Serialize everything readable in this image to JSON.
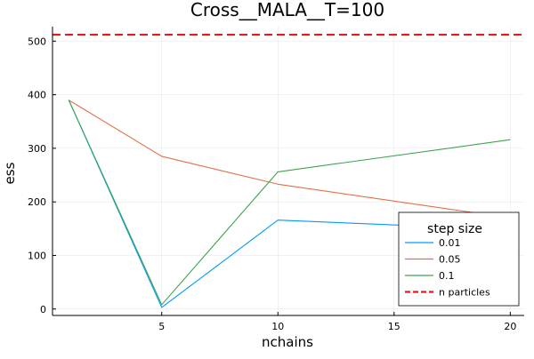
{
  "chart_data": {
    "type": "line",
    "title": "Cross__MALA__T=100",
    "xlabel": "nchains",
    "ylabel": "ess",
    "xlim": [
      0.3,
      20.6
    ],
    "ylim": [
      -12,
      527
    ],
    "xticks": [
      5,
      10,
      15,
      20
    ],
    "yticks": [
      0,
      100,
      200,
      300,
      400,
      500
    ],
    "grid": true,
    "legend": {
      "title": "step size",
      "position": "lower-right"
    },
    "x": [
      1,
      5,
      10,
      20
    ],
    "series": [
      {
        "name": "0.01",
        "color": "#009af9",
        "values": [
          390,
          3,
          166,
          148
        ]
      },
      {
        "name": "0.05",
        "color": "#e26f46",
        "values": [
          390,
          285,
          233,
          170
        ]
      },
      {
        "name": "0.1",
        "color": "#3ea44e",
        "values": [
          390,
          8,
          256,
          316
        ]
      }
    ],
    "hline": {
      "name": "n particles",
      "value": 512,
      "color": "#e41a1c",
      "style": "dashed"
    }
  }
}
